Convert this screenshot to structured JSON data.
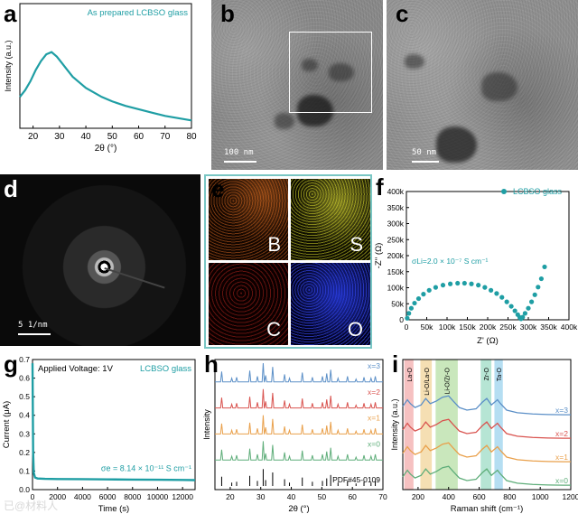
{
  "panels": {
    "a": {
      "label": "a"
    },
    "b": {
      "label": "b",
      "scale": "100 nm"
    },
    "c": {
      "label": "c",
      "scale": "50 nm"
    },
    "d": {
      "label": "d",
      "scale": "5 1/nm"
    },
    "e": {
      "label": "e",
      "maps": [
        "B",
        "S",
        "C",
        "O"
      ]
    },
    "f": {
      "label": "f"
    },
    "g": {
      "label": "g"
    },
    "h": {
      "label": "h"
    },
    "i": {
      "label": "i"
    }
  },
  "watermark": "已@材料人",
  "colors": {
    "teal": "#1f9ea4",
    "blue": "#5b8fc7",
    "red": "#d9534f",
    "orange": "#e9a04b",
    "green": "#5fae7a"
  },
  "chart_data": [
    {
      "id": "a",
      "type": "line",
      "legend": "As prepared LCBSO glass",
      "xlabel": "2θ (°)",
      "ylabel": "Intensity (a.u.)",
      "xlim": [
        15,
        80
      ],
      "xticks": [
        20,
        30,
        40,
        50,
        60,
        70,
        80
      ],
      "x": [
        15,
        17,
        19,
        21,
        23,
        25,
        27,
        29,
        31,
        33,
        35,
        37,
        40,
        43,
        46,
        50,
        55,
        60,
        65,
        70,
        75,
        80
      ],
      "y": [
        0.28,
        0.34,
        0.42,
        0.52,
        0.6,
        0.66,
        0.68,
        0.64,
        0.58,
        0.52,
        0.46,
        0.42,
        0.36,
        0.32,
        0.28,
        0.24,
        0.2,
        0.17,
        0.14,
        0.11,
        0.09,
        0.07
      ]
    },
    {
      "id": "f",
      "type": "scatter",
      "legend": "LCBSO glass",
      "annotation": "σLi=2.0 × 10⁻⁷ S cm⁻¹",
      "xlabel": "Z' (Ω)",
      "ylabel": "-Z'' (Ω)",
      "xlim": [
        0,
        400000
      ],
      "ylim": [
        0,
        400000
      ],
      "xticks": [
        "0",
        "50k",
        "100k",
        "150k",
        "200k",
        "250k",
        "300k",
        "350k",
        "400k"
      ],
      "yticks": [
        "0",
        "50k",
        "100k",
        "150k",
        "200k",
        "250k",
        "300k",
        "350k",
        "400k"
      ],
      "x": [
        2000,
        6000,
        12000,
        20000,
        30000,
        42000,
        56000,
        72000,
        90000,
        108000,
        126000,
        143000,
        160000,
        177000,
        193000,
        208000,
        222000,
        235000,
        247000,
        258000,
        267000,
        274000,
        279000,
        282000,
        286000,
        292000,
        300000,
        308000,
        316000,
        324000,
        332000,
        340000
      ],
      "y": [
        5000,
        20000,
        36000,
        52000,
        66000,
        80000,
        92000,
        101000,
        108000,
        112000,
        114000,
        114000,
        112000,
        108000,
        101000,
        92000,
        82000,
        70000,
        56000,
        42000,
        28000,
        16000,
        7000,
        3000,
        8000,
        20000,
        36000,
        56000,
        78000,
        102000,
        128000,
        165000
      ]
    },
    {
      "id": "g",
      "type": "line",
      "title": "Applied Voltage: 1V",
      "legend": "LCBSO glass",
      "annotation": "σe = 8.14 × 10⁻¹¹ S cm⁻¹",
      "xlabel": "Time (s)",
      "ylabel": "Current (μA)",
      "xlim": [
        0,
        13000
      ],
      "ylim": [
        0.0,
        0.7
      ],
      "xticks": [
        "0",
        "2000",
        "4000",
        "6000",
        "8000",
        "10000",
        "12000"
      ],
      "yticks": [
        "0.0",
        "0.1",
        "0.2",
        "0.3",
        "0.4",
        "0.5",
        "0.6",
        "0.7"
      ],
      "x": [
        0,
        50,
        100,
        200,
        400,
        1000,
        2000,
        4000,
        6000,
        8000,
        10000,
        12000,
        13000
      ],
      "y": [
        0.68,
        0.2,
        0.09,
        0.065,
        0.06,
        0.058,
        0.057,
        0.056,
        0.055,
        0.054,
        0.053,
        0.052,
        0.051
      ]
    },
    {
      "id": "h",
      "type": "bar",
      "xlabel": "2θ (°)",
      "ylabel": "Intensity",
      "xlim": [
        15,
        70
      ],
      "xticks": [
        "20",
        "30",
        "40",
        "50",
        "60",
        "70"
      ],
      "series": [
        {
          "name": "x=3",
          "color": "#5b8fc7"
        },
        {
          "name": "x=2",
          "color": "#d9534f"
        },
        {
          "name": "x=1",
          "color": "#e9a04b"
        },
        {
          "name": "x=0",
          "color": "#5fae7a"
        },
        {
          "name": "PDF#45-0109",
          "color": "#000000"
        }
      ],
      "peaks": [
        17.2,
        20.5,
        22.1,
        26.4,
        28.9,
        30.8,
        31.6,
        33.9,
        37.8,
        39.4,
        43.6,
        46.9,
        50.2,
        51.6,
        52.9,
        55.3,
        58.4,
        61.2,
        63.8,
        66.1,
        67.5
      ],
      "heights": [
        0.55,
        0.2,
        0.25,
        0.6,
        0.3,
        1.0,
        0.35,
        0.8,
        0.4,
        0.2,
        0.5,
        0.25,
        0.3,
        0.45,
        0.65,
        0.2,
        0.3,
        0.15,
        0.25,
        0.2,
        0.3
      ]
    },
    {
      "id": "i",
      "type": "line",
      "xlabel": "Raman shift (cm⁻¹)",
      "ylabel": "Intensity (a.u.)",
      "xlim": [
        100,
        1200
      ],
      "xticks": [
        "200",
        "400",
        "600",
        "800",
        "1000",
        "1200"
      ],
      "bands": [
        {
          "label": "La-O",
          "from": 110,
          "to": 170,
          "color": "#f4b6b6"
        },
        {
          "label": "Li-O/La-O",
          "from": 215,
          "to": 290,
          "color": "#f3d9a6"
        },
        {
          "label": "Li-O/Zr-O",
          "from": 315,
          "to": 460,
          "color": "#bfe3b0"
        },
        {
          "label": "Zr-O",
          "from": 610,
          "to": 680,
          "color": "#a9e0cc"
        },
        {
          "label": "Ta-O",
          "from": 700,
          "to": 755,
          "color": "#a8d8f0"
        }
      ],
      "series": [
        {
          "name": "x=3",
          "color": "#5b8fc7"
        },
        {
          "name": "x=2",
          "color": "#d9534f"
        },
        {
          "name": "x=1",
          "color": "#e9a04b"
        },
        {
          "name": "x=0",
          "color": "#5fae7a"
        }
      ],
      "x": [
        100,
        130,
        150,
        180,
        220,
        250,
        280,
        320,
        360,
        400,
        430,
        470,
        520,
        580,
        620,
        650,
        680,
        720,
        740,
        780,
        850,
        950,
        1050,
        1150,
        1200
      ],
      "y": [
        0.5,
        0.75,
        0.6,
        0.45,
        0.55,
        0.8,
        0.6,
        0.7,
        0.85,
        0.9,
        0.7,
        0.45,
        0.35,
        0.4,
        0.65,
        0.8,
        0.55,
        0.75,
        0.6,
        0.35,
        0.25,
        0.2,
        0.18,
        0.17,
        0.17
      ]
    }
  ]
}
